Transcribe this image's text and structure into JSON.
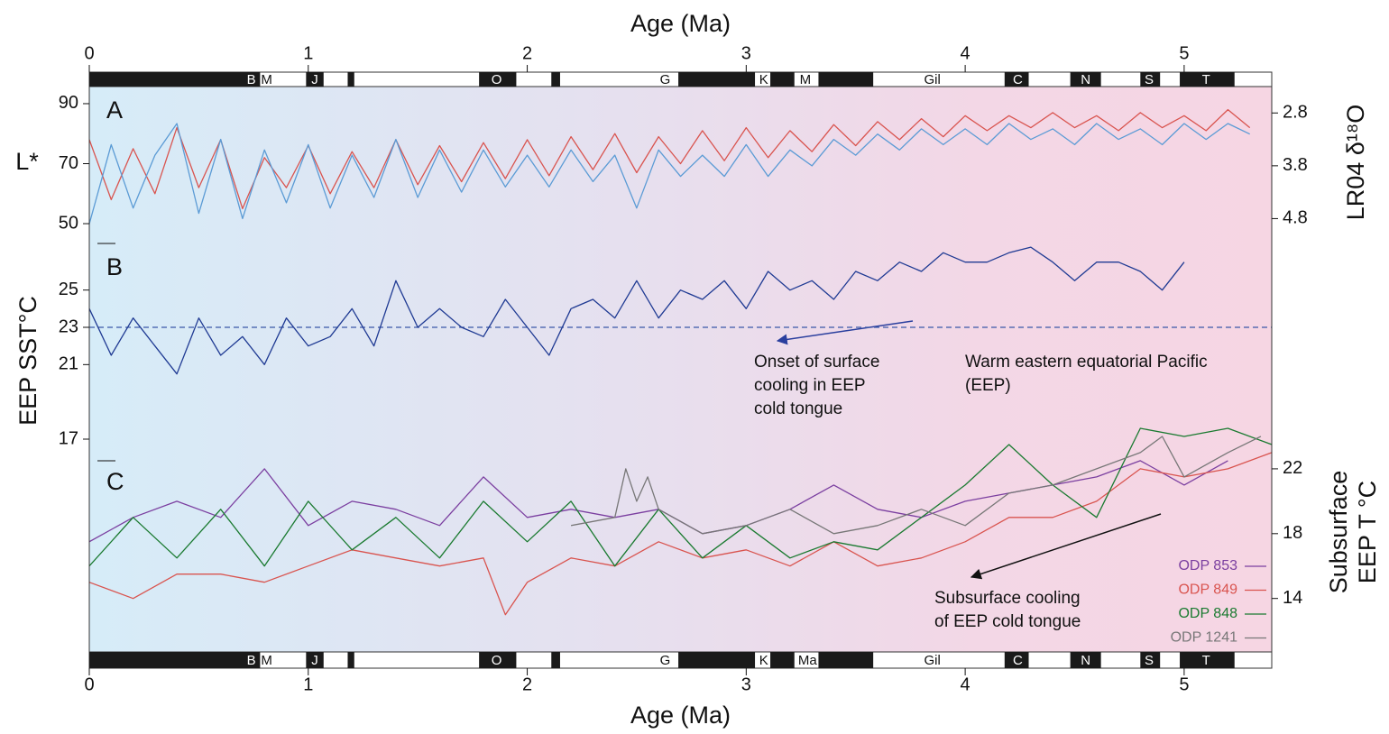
{
  "chart_data": [
    {
      "type": "line",
      "panel_label": "A",
      "xlabel": "Age (Ma)",
      "xlim": [
        0,
        5.4
      ],
      "xticks": [
        0,
        1,
        2,
        3,
        4,
        5
      ],
      "ylabel": "L*",
      "ylim": [
        46.4,
        95.7
      ],
      "yticks": [
        50,
        70,
        90
      ],
      "y2label": "LR04 δ¹⁸O",
      "y2lim": [
        5.1,
        2.3
      ],
      "y2ticks": [
        2.8,
        3.8,
        4.8
      ],
      "polarity": {
        "normal": [
          [
            0,
            0.78
          ],
          [
            0.99,
            1.07
          ],
          [
            1.18,
            1.21
          ],
          [
            1.78,
            1.95
          ],
          [
            2.11,
            2.15
          ],
          [
            2.69,
            3.04
          ],
          [
            3.11,
            3.22
          ],
          [
            3.33,
            3.58
          ],
          [
            4.18,
            4.29
          ],
          [
            4.48,
            4.62
          ],
          [
            4.8,
            4.89
          ],
          [
            4.98,
            5.23
          ]
        ],
        "labels": [
          {
            "text": "B",
            "age": 0.74
          },
          {
            "text": "M",
            "age": 0.81
          },
          {
            "text": "J",
            "age": 1.03
          },
          {
            "text": "O",
            "age": 1.86
          },
          {
            "text": "G",
            "age": 2.63
          },
          {
            "text": "K",
            "age": 3.08
          },
          {
            "text": "M",
            "age": 3.27
          },
          {
            "text": "Gil",
            "age": 3.85
          },
          {
            "text": "C",
            "age": 4.24
          },
          {
            "text": "N",
            "age": 4.55
          },
          {
            "text": "S",
            "age": 4.84
          },
          {
            "text": "T",
            "age": 5.1
          }
        ]
      },
      "x": [
        0,
        0.1,
        0.2,
        0.3,
        0.4,
        0.5,
        0.6,
        0.7,
        0.8,
        0.9,
        1.0,
        1.1,
        1.2,
        1.3,
        1.4,
        1.5,
        1.6,
        1.7,
        1.8,
        1.9,
        2.0,
        2.1,
        2.2,
        2.3,
        2.4,
        2.5,
        2.6,
        2.7,
        2.8,
        2.9,
        3.0,
        3.1,
        3.2,
        3.3,
        3.4,
        3.5,
        3.6,
        3.7,
        3.8,
        3.9,
        4.0,
        4.1,
        4.2,
        4.3,
        4.4,
        4.5,
        4.6,
        4.7,
        4.8,
        4.9,
        5.0,
        5.1,
        5.2,
        5.3
      ],
      "series": [
        {
          "color": "#d9544f",
          "values": [
            78,
            58,
            75,
            60,
            82,
            62,
            78,
            55,
            72,
            62,
            76,
            60,
            74,
            62,
            78,
            63,
            76,
            64,
            77,
            65,
            78,
            66,
            79,
            68,
            80,
            67,
            79,
            70,
            81,
            71,
            82,
            72,
            81,
            74,
            83,
            76,
            84,
            78,
            85,
            79,
            86,
            81,
            86,
            82,
            87,
            82,
            86,
            81,
            87,
            82,
            86,
            81,
            88,
            82
          ]
        },
        {
          "color": "#5b9bd5",
          "axis": "y2",
          "values": [
            4.9,
            3.4,
            4.6,
            3.6,
            3.0,
            4.7,
            3.3,
            4.8,
            3.5,
            4.5,
            3.4,
            4.6,
            3.6,
            4.4,
            3.3,
            4.4,
            3.5,
            4.3,
            3.5,
            4.2,
            3.6,
            4.2,
            3.5,
            4.1,
            3.6,
            4.6,
            3.5,
            4.0,
            3.6,
            4.0,
            3.4,
            4.0,
            3.5,
            3.8,
            3.3,
            3.6,
            3.2,
            3.5,
            3.1,
            3.4,
            3.1,
            3.4,
            3.0,
            3.3,
            3.1,
            3.4,
            3.0,
            3.3,
            3.1,
            3.4,
            3.0,
            3.3,
            3.0,
            3.2
          ]
        }
      ]
    },
    {
      "type": "line",
      "panel_label": "B",
      "ylabel": "EEP SST°C",
      "ylim": [
        17,
        27.5
      ],
      "yticks": [
        17,
        21,
        23,
        25
      ],
      "reference_line": 23,
      "annotations": [
        [
          "Onset of surface",
          "cooling in EEP",
          "cold tongue"
        ],
        [
          "Warm eastern equatorial Pacific",
          "(EEP)"
        ]
      ],
      "x": [
        0,
        0.1,
        0.2,
        0.3,
        0.4,
        0.5,
        0.6,
        0.7,
        0.8,
        0.9,
        1.0,
        1.1,
        1.2,
        1.3,
        1.4,
        1.5,
        1.6,
        1.7,
        1.8,
        1.9,
        2.0,
        2.1,
        2.2,
        2.3,
        2.4,
        2.5,
        2.6,
        2.7,
        2.8,
        2.9,
        3.0,
        3.1,
        3.2,
        3.3,
        3.4,
        3.5,
        3.6,
        3.7,
        3.8,
        3.9,
        4.0,
        4.1,
        4.2,
        4.3,
        4.4,
        4.5,
        4.6,
        4.7,
        4.8,
        4.9,
        5.0
      ],
      "series": [
        {
          "color": "#1f3a93",
          "values": [
            24,
            21.5,
            23.5,
            22,
            20.5,
            23.5,
            21.5,
            22.5,
            21,
            23.5,
            22,
            22.5,
            24,
            22,
            25.5,
            23,
            24,
            23,
            22.5,
            24.5,
            23,
            21.5,
            24,
            24.5,
            23.5,
            25.5,
            23.5,
            25,
            24.5,
            25.5,
            24,
            26,
            25,
            25.5,
            24.5,
            26,
            25.5,
            26.5,
            26,
            27,
            26.5,
            26.5,
            27,
            27.3,
            26.5,
            25.5,
            26.5,
            26.5,
            26,
            25,
            26.5
          ]
        }
      ]
    },
    {
      "type": "line",
      "panel_label": "C",
      "ylabel": [
        "Subsurface",
        "EEP T °C"
      ],
      "ylim": [
        10.7,
        25
      ],
      "yticks": [
        14,
        18,
        22
      ],
      "y_axis_side": "right",
      "xlabel": "Age (Ma)",
      "xlim": [
        0,
        5.4
      ],
      "xticks": [
        0,
        1,
        2,
        3,
        4,
        5
      ],
      "legend": "lower right",
      "annotations": [
        [
          "Subsurface cooling",
          "of EEP cold tongue"
        ]
      ],
      "polarity": {
        "normal": [
          [
            0,
            0.78
          ],
          [
            0.99,
            1.07
          ],
          [
            1.18,
            1.21
          ],
          [
            1.78,
            1.95
          ],
          [
            2.11,
            2.15
          ],
          [
            2.69,
            3.04
          ],
          [
            3.11,
            3.22
          ],
          [
            3.33,
            3.58
          ],
          [
            4.18,
            4.29
          ],
          [
            4.48,
            4.62
          ],
          [
            4.8,
            4.89
          ],
          [
            4.98,
            5.23
          ]
        ],
        "labels": [
          {
            "text": "B",
            "age": 0.74
          },
          {
            "text": "M",
            "age": 0.81
          },
          {
            "text": "J",
            "age": 1.03
          },
          {
            "text": "O",
            "age": 1.86
          },
          {
            "text": "G",
            "age": 2.63
          },
          {
            "text": "K",
            "age": 3.08
          },
          {
            "text": "Ma",
            "age": 3.28
          },
          {
            "text": "Gil",
            "age": 3.85
          },
          {
            "text": "C",
            "age": 4.24
          },
          {
            "text": "N",
            "age": 4.55
          },
          {
            "text": "S",
            "age": 4.84
          },
          {
            "text": "T",
            "age": 5.1
          }
        ]
      },
      "series": [
        {
          "name": "ODP 853",
          "color": "#7b3fa0",
          "x": [
            0,
            0.2,
            0.4,
            0.6,
            0.8,
            1.0,
            1.2,
            1.4,
            1.6,
            1.8,
            2.0,
            2.2,
            2.4,
            2.6,
            2.8,
            3.0,
            3.2,
            3.4,
            3.6,
            3.8,
            4.0,
            4.2,
            4.4,
            4.6,
            4.8,
            5.0,
            5.2
          ],
          "values": [
            17.5,
            19,
            20,
            19,
            22,
            18.5,
            20,
            19.5,
            18.5,
            21.5,
            19,
            19.5,
            19,
            19.5,
            18,
            18.5,
            19.5,
            21,
            19.5,
            19,
            20,
            20.5,
            21,
            21.5,
            22.5,
            21,
            22.5
          ]
        },
        {
          "name": "ODP 849",
          "color": "#d9544f",
          "x": [
            0,
            0.2,
            0.4,
            0.6,
            0.8,
            1.0,
            1.2,
            1.4,
            1.6,
            1.8,
            1.9,
            2.0,
            2.2,
            2.4,
            2.6,
            2.8,
            3.0,
            3.2,
            3.4,
            3.6,
            3.8,
            4.0,
            4.2,
            4.4,
            4.6,
            4.8,
            5.0,
            5.2,
            5.4
          ],
          "values": [
            15,
            14,
            15.5,
            15.5,
            15,
            16,
            17,
            16.5,
            16,
            16.5,
            13,
            15,
            16.5,
            16,
            17.5,
            16.5,
            17,
            16,
            17.5,
            16,
            16.5,
            17.5,
            19,
            19,
            20,
            22,
            21.5,
            22,
            23
          ]
        },
        {
          "name": "ODP 848",
          "color": "#1a7a30",
          "x": [
            0,
            0.2,
            0.4,
            0.6,
            0.8,
            1.0,
            1.2,
            1.4,
            1.6,
            1.8,
            2.0,
            2.2,
            2.4,
            2.6,
            2.8,
            3.0,
            3.2,
            3.4,
            3.6,
            3.8,
            4.0,
            4.2,
            4.4,
            4.6,
            4.8,
            5.0,
            5.2,
            5.4
          ],
          "values": [
            16,
            19,
            16.5,
            19.5,
            16,
            20,
            17,
            19,
            16.5,
            20,
            17.5,
            20,
            16,
            19.5,
            16.5,
            18.5,
            16.5,
            17.5,
            17,
            19,
            21,
            23.5,
            21,
            19,
            24.5,
            24,
            24.5,
            23.5
          ]
        },
        {
          "name": "ODP 1241",
          "color": "#777777",
          "x": [
            2.2,
            2.4,
            2.45,
            2.5,
            2.55,
            2.6,
            2.8,
            3.0,
            3.2,
            3.4,
            3.6,
            3.8,
            4.0,
            4.2,
            4.4,
            4.6,
            4.8,
            4.9,
            5.0,
            5.2,
            5.35
          ],
          "values": [
            18.5,
            19,
            22,
            20,
            21.5,
            19.5,
            18,
            18.5,
            19.5,
            18,
            18.5,
            19.5,
            18.5,
            20.5,
            21,
            22,
            23,
            24,
            21.5,
            23,
            24
          ]
        }
      ]
    }
  ]
}
